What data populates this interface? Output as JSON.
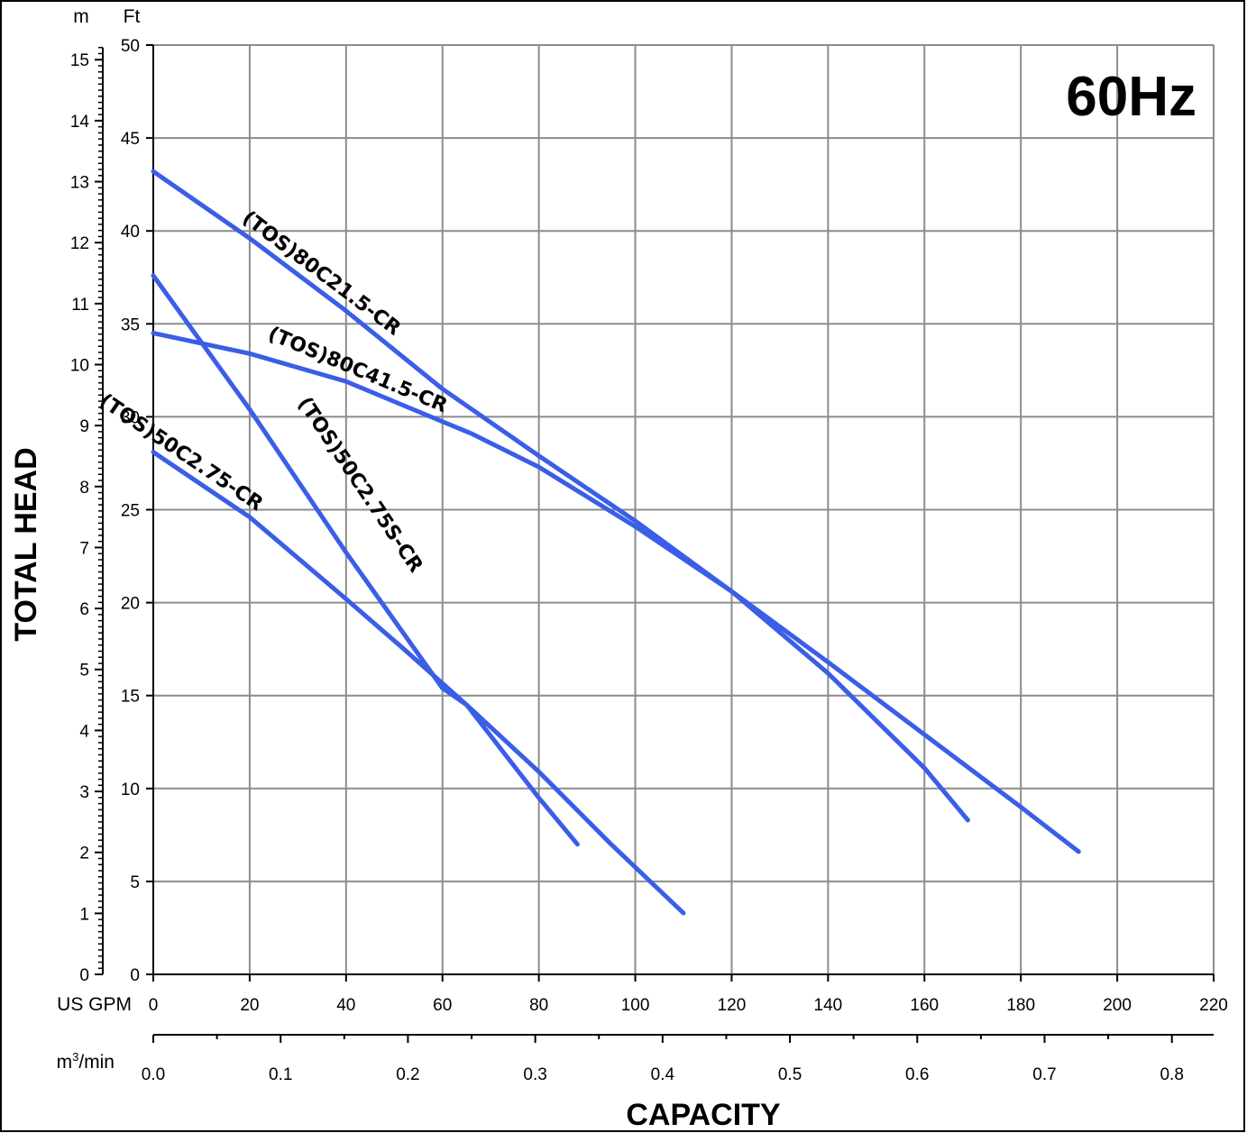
{
  "chart_data": {
    "type": "line",
    "frequency_label": "60Hz",
    "xlabel": "CAPACITY",
    "ylabel": "TOTAL HEAD",
    "x_primary": {
      "unit": "US GPM",
      "lim": [
        0,
        220
      ],
      "ticks": [
        0,
        20,
        40,
        60,
        80,
        100,
        120,
        140,
        160,
        180,
        200,
        220
      ]
    },
    "x_secondary": {
      "unit": "m3/min",
      "unit_main": "m",
      "unit_sup": "3",
      "unit_tail": "/min",
      "ticks": [
        "0.0",
        "0.1",
        "0.2",
        "0.3",
        "0.4",
        "0.5",
        "0.6",
        "0.7",
        "0.8"
      ]
    },
    "y_primary": {
      "unit": "Ft",
      "lim": [
        0,
        50
      ],
      "ticks": [
        0,
        5,
        10,
        15,
        20,
        25,
        30,
        35,
        40,
        45,
        50
      ]
    },
    "y_secondary": {
      "unit": "m",
      "ticks": [
        0,
        1,
        2,
        3,
        4,
        5,
        6,
        7,
        8,
        9,
        10,
        11,
        12,
        13,
        14,
        15
      ]
    },
    "grid": true,
    "series": [
      {
        "name": "(TOS)80C21.5-CR",
        "x": [
          0,
          20,
          40,
          60,
          80,
          100,
          120,
          140,
          160,
          169
        ],
        "y": [
          43.2,
          39.6,
          35.7,
          31.5,
          27.9,
          24.4,
          20.6,
          16.2,
          11.1,
          8.3
        ]
      },
      {
        "name": "(TOS)80C41.5-CR",
        "x": [
          0,
          20,
          40,
          52,
          66,
          80,
          100,
          120,
          140,
          160,
          180,
          192
        ],
        "y": [
          34.5,
          33.4,
          31.9,
          30.6,
          29.1,
          27.3,
          24.1,
          20.6,
          16.8,
          12.9,
          9.0,
          6.6
        ]
      },
      {
        "name": "(TOS)50C2.75S-CR",
        "x": [
          0,
          20,
          40,
          60,
          65,
          80,
          88
        ],
        "y": [
          37.6,
          30.4,
          22.7,
          15.4,
          14.5,
          9.5,
          7.0
        ]
      },
      {
        "name": "(TOS)50C2.75-CR",
        "x": [
          0,
          20,
          40,
          52,
          65,
          80,
          95,
          110
        ],
        "y": [
          28.1,
          24.6,
          20.2,
          17.5,
          14.5,
          10.9,
          7.0,
          3.3
        ]
      }
    ]
  }
}
